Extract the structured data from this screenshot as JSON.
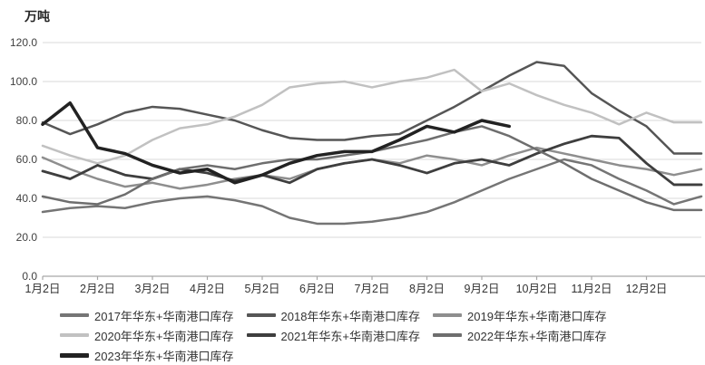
{
  "chart_data": {
    "type": "line",
    "unit": "万吨",
    "title": "",
    "xlabel": "",
    "ylabel": "万吨",
    "x_tick_labels": [
      "1月2日",
      "2月2日",
      "3月2日",
      "4月2日",
      "5月2日",
      "6月2日",
      "7月2日",
      "8月2日",
      "9月2日",
      "10月2日",
      "11月2日",
      "12月2日"
    ],
    "y_tick_labels": [
      "0.0",
      "20.0",
      "40.0",
      "60.0",
      "80.0",
      "100.0",
      "120.0"
    ],
    "ylim": [
      0,
      120
    ],
    "y_step": 20,
    "grid": "horizontal-only",
    "legend_position": "bottom",
    "points_per_series": 25,
    "x_note": "25 semi-monthly points Jan–Dec; month tick labels fall on even indices 0,2,...,22",
    "series": [
      {
        "name": "2017年华东+华南港口库存",
        "color": "#757575",
        "width": 2.5,
        "values": [
          33,
          35,
          36,
          35,
          38,
          40,
          41,
          39,
          36,
          30,
          27,
          27,
          28,
          30,
          33,
          38,
          44,
          50,
          55,
          60,
          57,
          50,
          44,
          37,
          41
        ]
      },
      {
        "name": "2018年华东+华南港口库存",
        "color": "#565656",
        "width": 2.5,
        "values": [
          79,
          73,
          78,
          84,
          87,
          86,
          83,
          80,
          75,
          71,
          70,
          70,
          72,
          73,
          80,
          87,
          95,
          103,
          110,
          108,
          94,
          85,
          77,
          63,
          63
        ]
      },
      {
        "name": "2019年华东+华南港口库存",
        "color": "#8e8e8e",
        "width": 2.5,
        "values": [
          61,
          55,
          50,
          46,
          48,
          45,
          47,
          50,
          52,
          50,
          55,
          58,
          60,
          58,
          62,
          60,
          57,
          62,
          66,
          63,
          60,
          57,
          55,
          52,
          55
        ]
      },
      {
        "name": "2020年华东+华南港口库存",
        "color": "#c1c1c1",
        "width": 2.5,
        "values": [
          67,
          62,
          58,
          62,
          70,
          76,
          78,
          82,
          88,
          97,
          99,
          100,
          97,
          100,
          102,
          106,
          95,
          99,
          93,
          88,
          84,
          78,
          84,
          79,
          79
        ]
      },
      {
        "name": "2021年华东+华南港口库存",
        "color": "#3e3e3e",
        "width": 2.8,
        "values": [
          54,
          50,
          57,
          52,
          50,
          55,
          53,
          49,
          52,
          48,
          55,
          58,
          60,
          57,
          53,
          58,
          60,
          57,
          63,
          68,
          72,
          71,
          58,
          47,
          47
        ]
      },
      {
        "name": "2022年华东+华南港口库存",
        "color": "#6e6e6e",
        "width": 2.5,
        "values": [
          41,
          38,
          37,
          42,
          50,
          55,
          57,
          55,
          58,
          60,
          60,
          62,
          64,
          67,
          70,
          74,
          77,
          72,
          65,
          58,
          50,
          44,
          38,
          34,
          34
        ]
      },
      {
        "name": "2023年华东+华南港口库存",
        "color": "#222222",
        "width": 3.5,
        "values": [
          78,
          89,
          66,
          63,
          57,
          53,
          55,
          48,
          52,
          58,
          62,
          64,
          64,
          70,
          77,
          74,
          80,
          77
        ]
      }
    ],
    "legend_rows": [
      [
        0,
        1,
        2
      ],
      [
        3,
        4,
        5
      ],
      [
        6
      ]
    ],
    "colors": {
      "grid": "#d9d9d9",
      "axis": "#a6a6a6",
      "tick_label": "#404040"
    }
  }
}
